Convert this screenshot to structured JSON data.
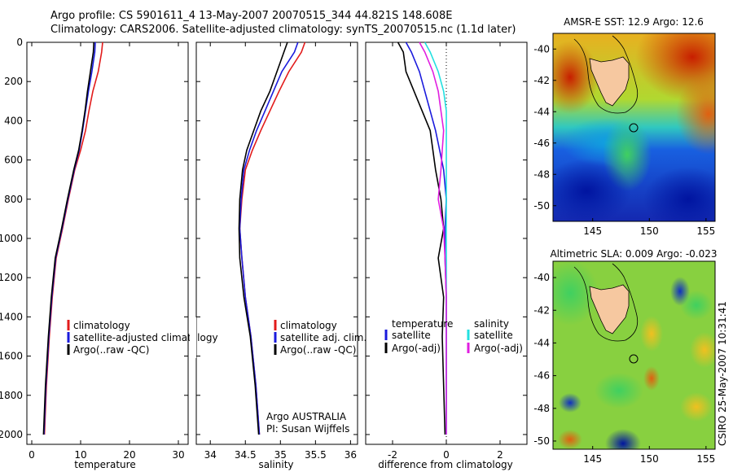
{
  "header": {
    "title_line1": "Argo profile: CS 5901611_4 13-May-2007 20070515_344 44.821S 148.608E",
    "title_line2": "Climatology: CARS2006. Satellite-adjusted climatology: synTS_20070515.nc (1.1d later)"
  },
  "side_stamp": "CSIRO 25-May-2007 10:31:41",
  "colors": {
    "climatology": "#e21b1b",
    "satellite": "#1a1adc",
    "argo": "#000000",
    "sal_satellite": "#22e0e0",
    "sal_argo": "#e01ee0",
    "land": "#f6c8a0"
  },
  "chart_data": [
    {
      "type": "line",
      "name": "temperature",
      "xlabel": "temperature",
      "ylabel": "",
      "xlim": [
        -1,
        32
      ],
      "ylim": [
        2050,
        0
      ],
      "xticks": [
        0,
        10,
        20,
        30
      ],
      "yticks": [
        0,
        200,
        400,
        600,
        800,
        1000,
        1200,
        1400,
        1600,
        1800,
        2000
      ],
      "series": [
        {
          "name": "climatology",
          "color": "#e21b1b",
          "x": [
            14.5,
            14.3,
            13.6,
            12.5,
            11.7,
            11.0,
            10.0,
            8.8,
            7.5,
            6.3,
            5.0,
            4.2,
            3.6,
            3.0,
            2.6
          ],
          "y": [
            0,
            50,
            150,
            250,
            350,
            450,
            550,
            650,
            800,
            950,
            1100,
            1300,
            1500,
            1750,
            2000
          ]
        },
        {
          "name": "satellite-adjusted climatology",
          "color": "#1a1adc",
          "x": [
            13.0,
            12.9,
            12.3,
            11.6,
            11.0,
            10.4,
            9.7,
            8.7,
            7.4,
            6.2,
            4.9,
            4.1,
            3.5,
            2.9,
            2.5
          ],
          "y": [
            0,
            50,
            150,
            250,
            350,
            450,
            550,
            650,
            800,
            950,
            1100,
            1300,
            1500,
            1750,
            2000
          ]
        },
        {
          "name": "Argo(..raw -QC)",
          "color": "#000000",
          "x": [
            12.7,
            12.6,
            12.0,
            11.4,
            10.9,
            10.3,
            9.6,
            8.6,
            7.3,
            6.1,
            4.8,
            4.0,
            3.4,
            2.8,
            2.4
          ],
          "y": [
            0,
            50,
            150,
            250,
            350,
            450,
            550,
            650,
            800,
            950,
            1100,
            1300,
            1500,
            1750,
            2000
          ]
        }
      ],
      "legend": [
        "climatology",
        "satellite-adjusted climatology",
        "Argo(..raw -QC)"
      ]
    },
    {
      "type": "line",
      "name": "salinity",
      "xlabel": "salinity",
      "ylabel": "",
      "xlim": [
        33.8,
        36.1
      ],
      "ylim": [
        2050,
        0
      ],
      "xticks": [
        34,
        34.5,
        35,
        35.5,
        36
      ],
      "xtick_labels": [
        "34",
        "34.5",
        "35",
        "35.5",
        "36"
      ],
      "series": [
        {
          "name": "climatology",
          "color": "#e21b1b",
          "x": [
            35.35,
            35.3,
            35.12,
            34.98,
            34.85,
            34.72,
            34.6,
            34.5,
            34.45,
            34.42,
            34.45,
            34.5,
            34.58,
            34.65,
            34.7
          ],
          "y": [
            0,
            50,
            150,
            250,
            350,
            450,
            550,
            650,
            800,
            950,
            1100,
            1300,
            1500,
            1750,
            2000
          ]
        },
        {
          "name": "satellite adj. clim.",
          "color": "#1a1adc",
          "x": [
            35.25,
            35.2,
            35.02,
            34.9,
            34.78,
            34.66,
            34.56,
            34.48,
            34.44,
            34.42,
            34.45,
            34.5,
            34.58,
            34.65,
            34.7
          ],
          "y": [
            0,
            50,
            150,
            250,
            350,
            450,
            550,
            650,
            800,
            950,
            1100,
            1300,
            1500,
            1750,
            2000
          ]
        },
        {
          "name": "Argo(..raw -QC)",
          "color": "#000000",
          "x": [
            35.1,
            35.05,
            34.95,
            34.85,
            34.72,
            34.62,
            34.52,
            34.46,
            34.42,
            34.41,
            34.42,
            34.48,
            34.57,
            34.64,
            34.69
          ],
          "y": [
            0,
            50,
            150,
            250,
            350,
            450,
            550,
            650,
            800,
            950,
            1100,
            1300,
            1500,
            1750,
            2000
          ]
        }
      ],
      "legend": [
        "climatology",
        "satellite adj. clim.",
        "Argo(..raw -QC)"
      ],
      "annotation": [
        "Argo AUSTRALIA",
        "PI: Susan Wijffels"
      ]
    },
    {
      "type": "line",
      "name": "difference",
      "xlabel": "difference from climatology",
      "ylabel": "",
      "xlim": [
        -3,
        3
      ],
      "ylim": [
        2050,
        0
      ],
      "xticks": [
        -2,
        0,
        2
      ],
      "series": [
        {
          "name": "temperature satellite",
          "color": "#1a1adc",
          "x": [
            -1.5,
            -1.3,
            -1.0,
            -0.8,
            -0.6,
            -0.4,
            -0.25,
            -0.1,
            0.0,
            -0.05,
            -0.05,
            0.0,
            0.0,
            0.0,
            0.0
          ],
          "y": [
            0,
            50,
            150,
            250,
            350,
            450,
            550,
            650,
            800,
            950,
            1100,
            1300,
            1500,
            1750,
            2000
          ]
        },
        {
          "name": "temperature Argo(-adj)",
          "color": "#000000",
          "x": [
            -1.8,
            -1.6,
            -1.5,
            -1.2,
            -0.9,
            -0.6,
            -0.5,
            -0.4,
            -0.2,
            -0.1,
            -0.3,
            -0.1,
            -0.15,
            -0.1,
            -0.05
          ],
          "y": [
            0,
            50,
            150,
            250,
            350,
            450,
            550,
            650,
            800,
            950,
            1100,
            1300,
            1500,
            1750,
            2000
          ]
        },
        {
          "name": "salinity satellite",
          "color": "#22e0e0",
          "x": [
            -0.8,
            -0.6,
            -0.3,
            -0.1,
            0.0,
            0.0,
            0.0,
            0.0,
            0.0,
            0.0,
            0.0,
            0.0,
            0.0,
            0.0,
            0.0
          ],
          "y": [
            0,
            50,
            150,
            250,
            350,
            450,
            550,
            650,
            800,
            950,
            1100,
            1300,
            1500,
            1750,
            2000
          ]
        },
        {
          "name": "salinity Argo(-adj)",
          "color": "#e01ee0",
          "x": [
            -1.0,
            -0.8,
            -0.5,
            -0.3,
            -0.2,
            -0.1,
            -0.15,
            -0.2,
            -0.3,
            -0.1,
            -0.05,
            0.0,
            0.0,
            0.0,
            0.0
          ],
          "y": [
            0,
            50,
            150,
            250,
            350,
            450,
            550,
            650,
            800,
            950,
            1100,
            1300,
            1500,
            1750,
            2000
          ]
        }
      ],
      "legend_groups": [
        {
          "heading": "temperature",
          "items": [
            "satellite",
            "Argo(-adj)"
          ]
        },
        {
          "heading": "salinity",
          "items": [
            "satellite",
            "Argo(-adj)"
          ]
        }
      ]
    },
    {
      "type": "heatmap",
      "name": "sst-map",
      "title": "AMSR-E SST: 12.9 Argo: 12.6",
      "xlim": [
        141.5,
        155.8
      ],
      "ylim": [
        -51,
        -39
      ],
      "xticks": [
        145,
        150,
        155
      ],
      "yticks": [
        -40,
        -42,
        -44,
        -46,
        -48,
        -50
      ],
      "marker": {
        "lon": 148.608,
        "lat": -44.821
      }
    },
    {
      "type": "heatmap",
      "name": "sla-map",
      "title": "Altimetric SLA: 0.009 Argo: -0.023",
      "xlim": [
        141.5,
        155.8
      ],
      "ylim": [
        -50.5,
        -39
      ],
      "xticks": [
        145,
        150,
        155
      ],
      "yticks": [
        -40,
        -42,
        -44,
        -46,
        -48,
        -50
      ],
      "marker": {
        "lon": 148.608,
        "lat": -44.821
      }
    }
  ]
}
